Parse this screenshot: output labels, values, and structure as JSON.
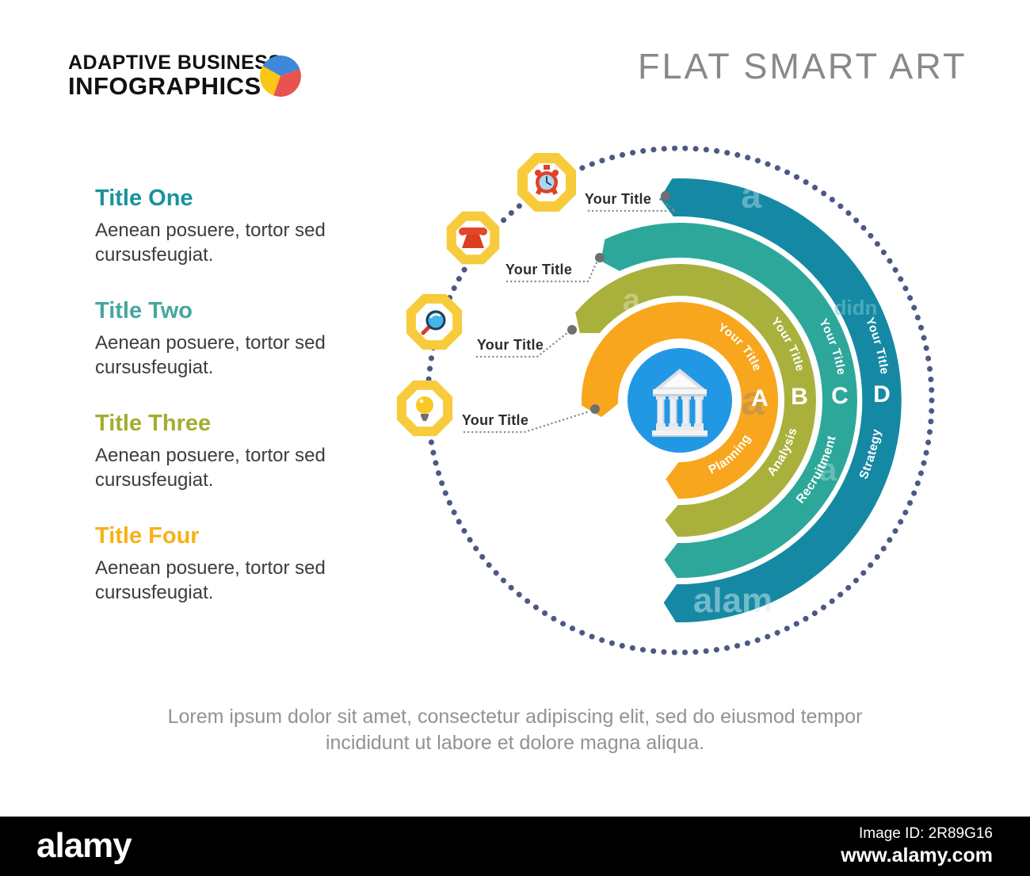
{
  "logo": {
    "line1": "ADAPTIVE BUSINESS",
    "line2": "INFOGRAPHICS",
    "pie_colors": {
      "blue": "#3E87D9",
      "red": "#E8524F",
      "yellow": "#FBC716"
    }
  },
  "header": {
    "title": "FLAT SMART ART"
  },
  "sidebar": {
    "items": [
      {
        "title": "Title One",
        "body": "Aenean posuere, tortor sed cursusfeugiat.",
        "color": "#17939C"
      },
      {
        "title": "Title Two",
        "body": "Aenean posuere, tortor sed cursusfeugiat.",
        "color": "#45A79E"
      },
      {
        "title": "Title Three",
        "body": "Aenean posuere, tortor sed cursusfeugiat.",
        "color": "#A2AD2F"
      },
      {
        "title": "Title Four",
        "body": "Aenean posuere, tortor sed cursusfeugiat.",
        "color": "#F8B117"
      }
    ]
  },
  "diagram": {
    "center_icon": "bank-building",
    "center_color": "#2298E4",
    "dotted_circle_color": "#4C5886",
    "rings": [
      {
        "letter": "A",
        "curved_label": "Your Title",
        "word": "Planning",
        "color": "#F8A61D"
      },
      {
        "letter": "B",
        "curved_label": "Your Title",
        "word": "Analysis",
        "color": "#A9B13C"
      },
      {
        "letter": "C",
        "curved_label": "Your Title",
        "word": "Recruitment",
        "color": "#2EA79B"
      },
      {
        "letter": "D",
        "curved_label": "Your Title",
        "word": "Strategy",
        "color": "#1589A4"
      }
    ],
    "callouts": [
      {
        "label": "Your Title",
        "icon": "alarm-clock",
        "connects_to_ring": "D"
      },
      {
        "label": "Your Title",
        "icon": "telephone",
        "connects_to_ring": "C"
      },
      {
        "label": "Your Title",
        "icon": "magnifier",
        "connects_to_ring": "B"
      },
      {
        "label": "Your Title",
        "icon": "light-bulb",
        "connects_to_ring": "A"
      }
    ]
  },
  "caption": {
    "text": "Lorem ipsum dolor sit amet, consectetur adipiscing elit, sed do eiusmod tempor incididunt ut labore et dolore magna aliqua."
  },
  "watermark": {
    "brand": "alamy",
    "image_id": "Image ID: 2R89G16",
    "url": "www.alamy.com",
    "ghosts": [
      "a",
      "a",
      "a",
      "a",
      "alam",
      "didn"
    ]
  }
}
